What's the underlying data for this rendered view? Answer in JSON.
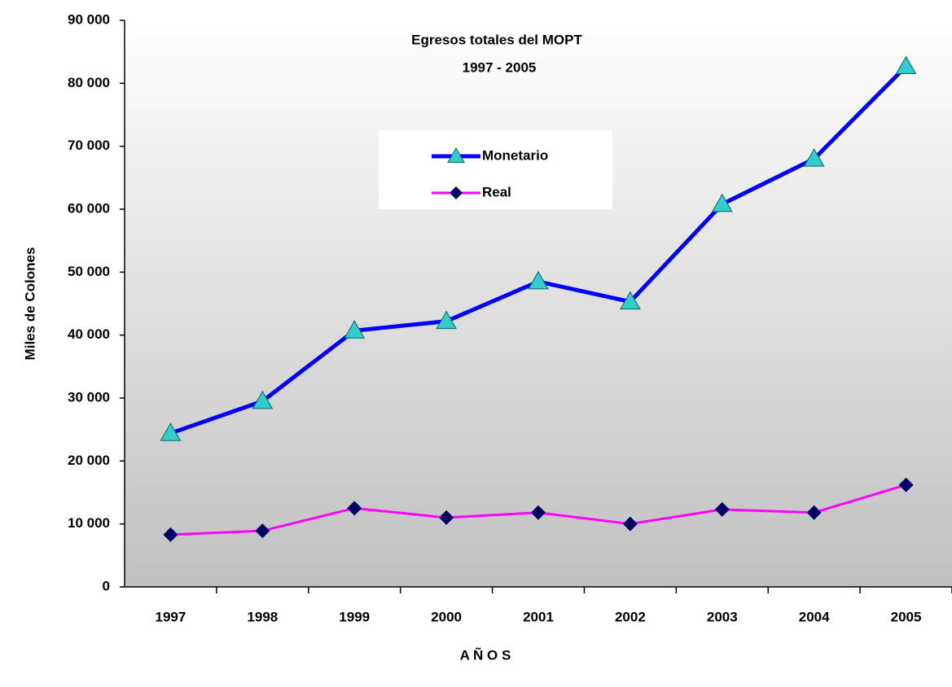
{
  "chart_data": {
    "type": "line",
    "title": "Egresos totales del MOPT",
    "subtitle": "1997 - 2005",
    "y_label": "Miles de Colones",
    "x_label": "A Ñ O S",
    "categories": [
      "1997",
      "1998",
      "1999",
      "2000",
      "2001",
      "2002",
      "2003",
      "2004",
      "2005"
    ],
    "series": [
      {
        "name": "Monetario",
        "color": "#0000ff",
        "marker_color": "#33cccc",
        "marker": "triangle",
        "values": [
          24400,
          29500,
          40700,
          42200,
          48500,
          45300,
          60800,
          68000,
          82700
        ]
      },
      {
        "name": "Real",
        "color": "#ff00ff",
        "marker_color": "#000066",
        "marker": "diamond",
        "values": [
          8300,
          8900,
          12500,
          11000,
          11800,
          10000,
          12300,
          11800,
          16200
        ]
      }
    ],
    "ylim": [
      0,
      90000
    ],
    "yticks": [
      0,
      {
        "value": 10000,
        "label": "10 000"
      },
      {
        "value": 20000,
        "label": "20 000"
      },
      {
        "value": 30000,
        "label": "30 000"
      },
      {
        "value": 40000,
        "label": "40 000"
      },
      {
        "value": 50000,
        "label": "50 000"
      },
      {
        "value": 60000,
        "label": "60 000"
      },
      {
        "value": 70000,
        "label": "70 000"
      },
      {
        "value": 80000,
        "label": "80 000"
      },
      {
        "value": 90000,
        "label": "90 000"
      }
    ],
    "grid": false,
    "legend": "top-center"
  }
}
